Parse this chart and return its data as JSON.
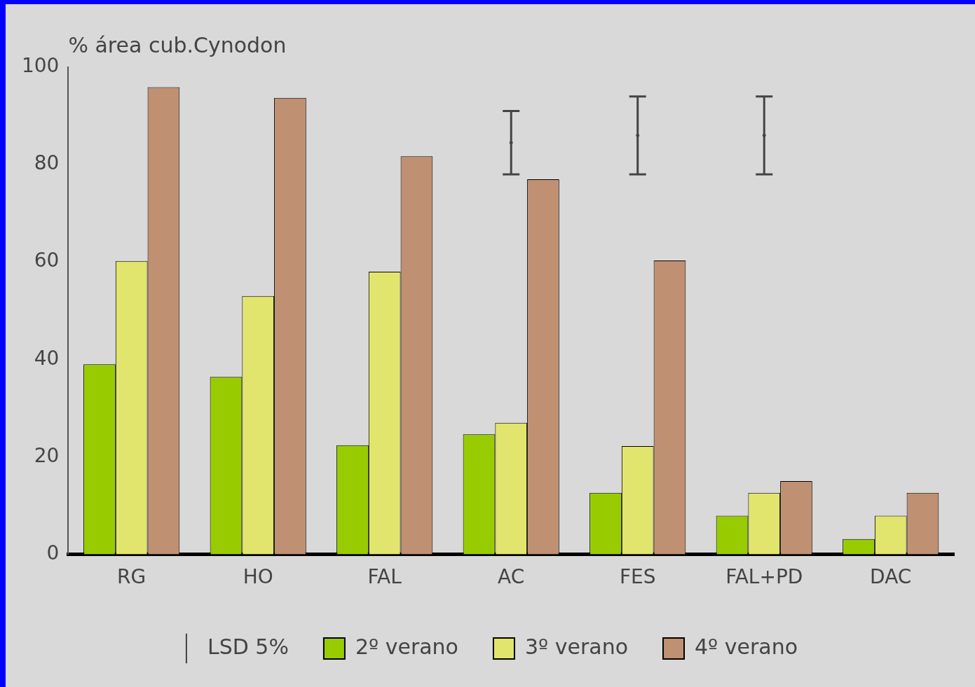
{
  "chart_data": {
    "type": "bar",
    "ylabel": "% área cub.Cynodon",
    "categories": [
      "RG",
      "HO",
      "FAL",
      "AC",
      "FES",
      "FAL+PD",
      "DAC"
    ],
    "series": [
      {
        "name": "2º verano",
        "color": "#99cc00",
        "values": [
          39,
          36.4,
          22.4,
          24.6,
          12.6,
          7.9,
          3.1
        ]
      },
      {
        "name": "3º verano",
        "color": "#e1e56e",
        "values": [
          60.2,
          53,
          58,
          27,
          22.2,
          12.6,
          7.9
        ]
      },
      {
        "name": "4º verano",
        "color": "#c09072",
        "values": [
          95.9,
          93.7,
          81.7,
          77,
          60.3,
          15,
          12.6
        ]
      },
      {
        "name": "LSD 5%",
        "type": "scatter",
        "color": "#444444",
        "x": [
          "AC",
          "FES",
          "FAL+PD"
        ],
        "values": [
          84.5,
          86,
          86
        ],
        "errors": [
          6.5,
          8,
          8
        ]
      }
    ],
    "ylim": [
      0,
      100
    ],
    "yticks": [
      0,
      20,
      40,
      60,
      80,
      100
    ],
    "grid": false,
    "legend": "bottom"
  }
}
